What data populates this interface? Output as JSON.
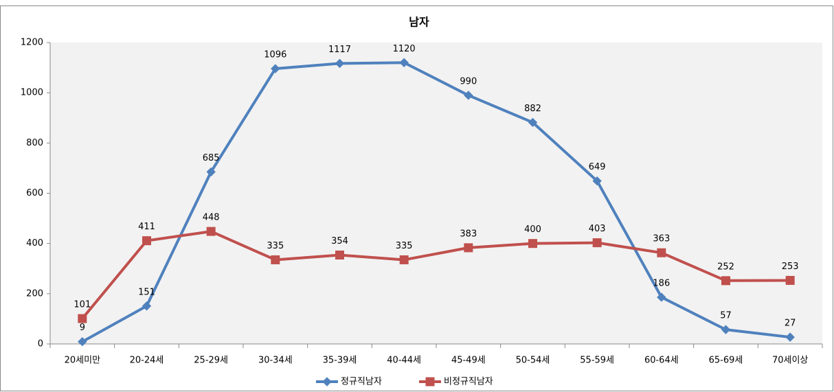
{
  "chart_data": {
    "type": "line",
    "title": "남자",
    "categories": [
      "20세미만",
      "20-24세",
      "25-29세",
      "30-34세",
      "35-39세",
      "40-44세",
      "45-49세",
      "50-54세",
      "55-59세",
      "60-64세",
      "65-69세",
      "70세이상"
    ],
    "series": [
      {
        "name": "정규직남자",
        "color": "#4f81bd",
        "marker": "diamond",
        "values": [
          9,
          151,
          685,
          1096,
          1117,
          1120,
          990,
          882,
          649,
          186,
          57,
          27
        ]
      },
      {
        "name": "비정규직남자",
        "color": "#c0504d",
        "marker": "square",
        "values": [
          101,
          411,
          448,
          335,
          354,
          335,
          383,
          400,
          403,
          363,
          252,
          253
        ]
      }
    ],
    "ylim": [
      0,
      1200
    ],
    "yticks": [
      0,
      200,
      400,
      600,
      800,
      1000,
      1200
    ],
    "grid": false,
    "legend": "bottom"
  }
}
